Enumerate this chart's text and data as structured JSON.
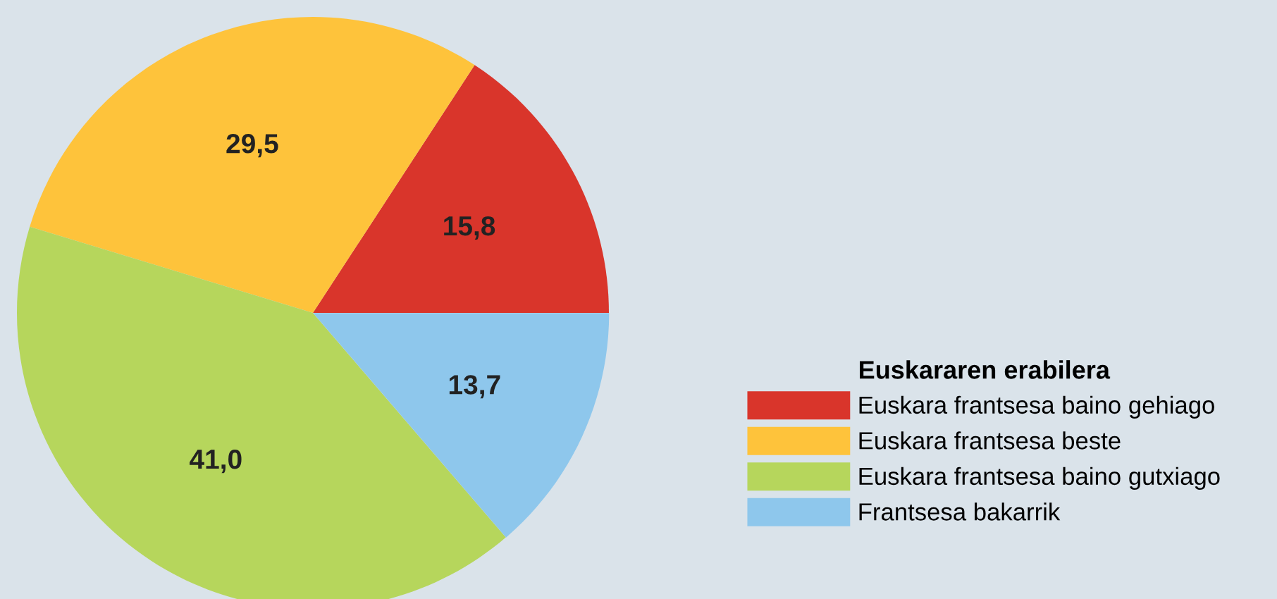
{
  "chart_data": {
    "type": "pie",
    "legend_title": "Euskararen erabilera",
    "legend": "right",
    "categories": [
      "Euskara frantsesa baino gehiago",
      "Euskara frantsesa beste",
      "Euskara frantsesa baino gutxiago",
      "Frantsesa bakarrik"
    ],
    "values": [
      15.8,
      29.5,
      41.0,
      13.7
    ],
    "value_labels": [
      "15,8",
      "29,5",
      "41,0",
      "13,7"
    ],
    "colors": [
      "#d9352b",
      "#fec33b",
      "#b6d65c",
      "#8ec7ec"
    ]
  }
}
